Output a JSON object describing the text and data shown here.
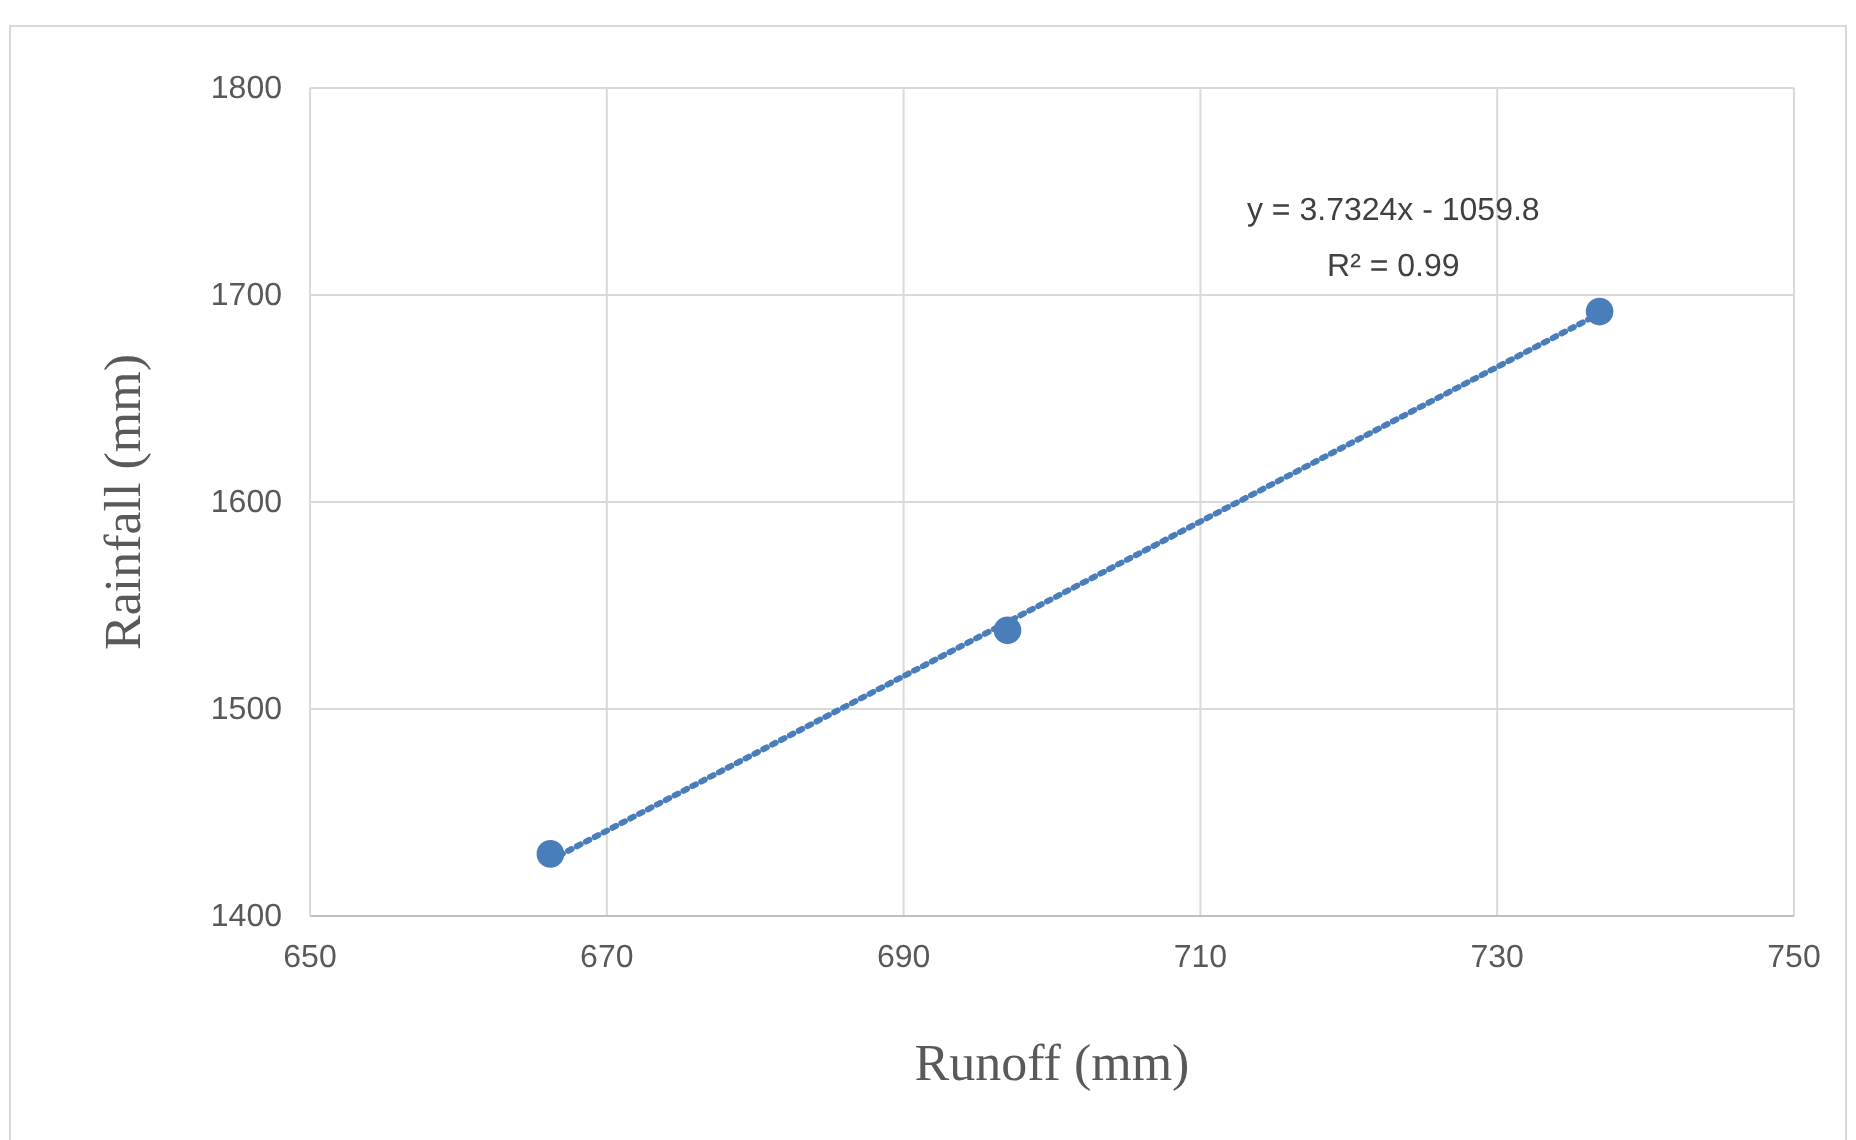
{
  "chart_data": {
    "type": "scatter",
    "xlabel": "Runoff (mm)",
    "ylabel": "Rainfall (mm)",
    "xlim": [
      650,
      750
    ],
    "xticks": [
      650,
      670,
      690,
      710,
      730,
      750
    ],
    "ylim": [
      1400,
      1800
    ],
    "yticks": [
      1400,
      1500,
      1600,
      1700,
      1800
    ],
    "grid": true,
    "marker": "circle",
    "series": [
      {
        "color": "#4a7ebb",
        "x": [
          666.2,
          697.0,
          736.9
        ],
        "values": [
          1430,
          1538,
          1692
        ]
      },
      {
        "type": "line",
        "color": "#4a7ebb",
        "line_style": "dotted",
        "marker": "none",
        "x": [
          666.2,
          736.9
        ],
        "values": [
          1427,
          1691
        ]
      }
    ],
    "annotations": [
      "y = 3.7324x - 1059.8",
      "R² = 0.99"
    ]
  }
}
